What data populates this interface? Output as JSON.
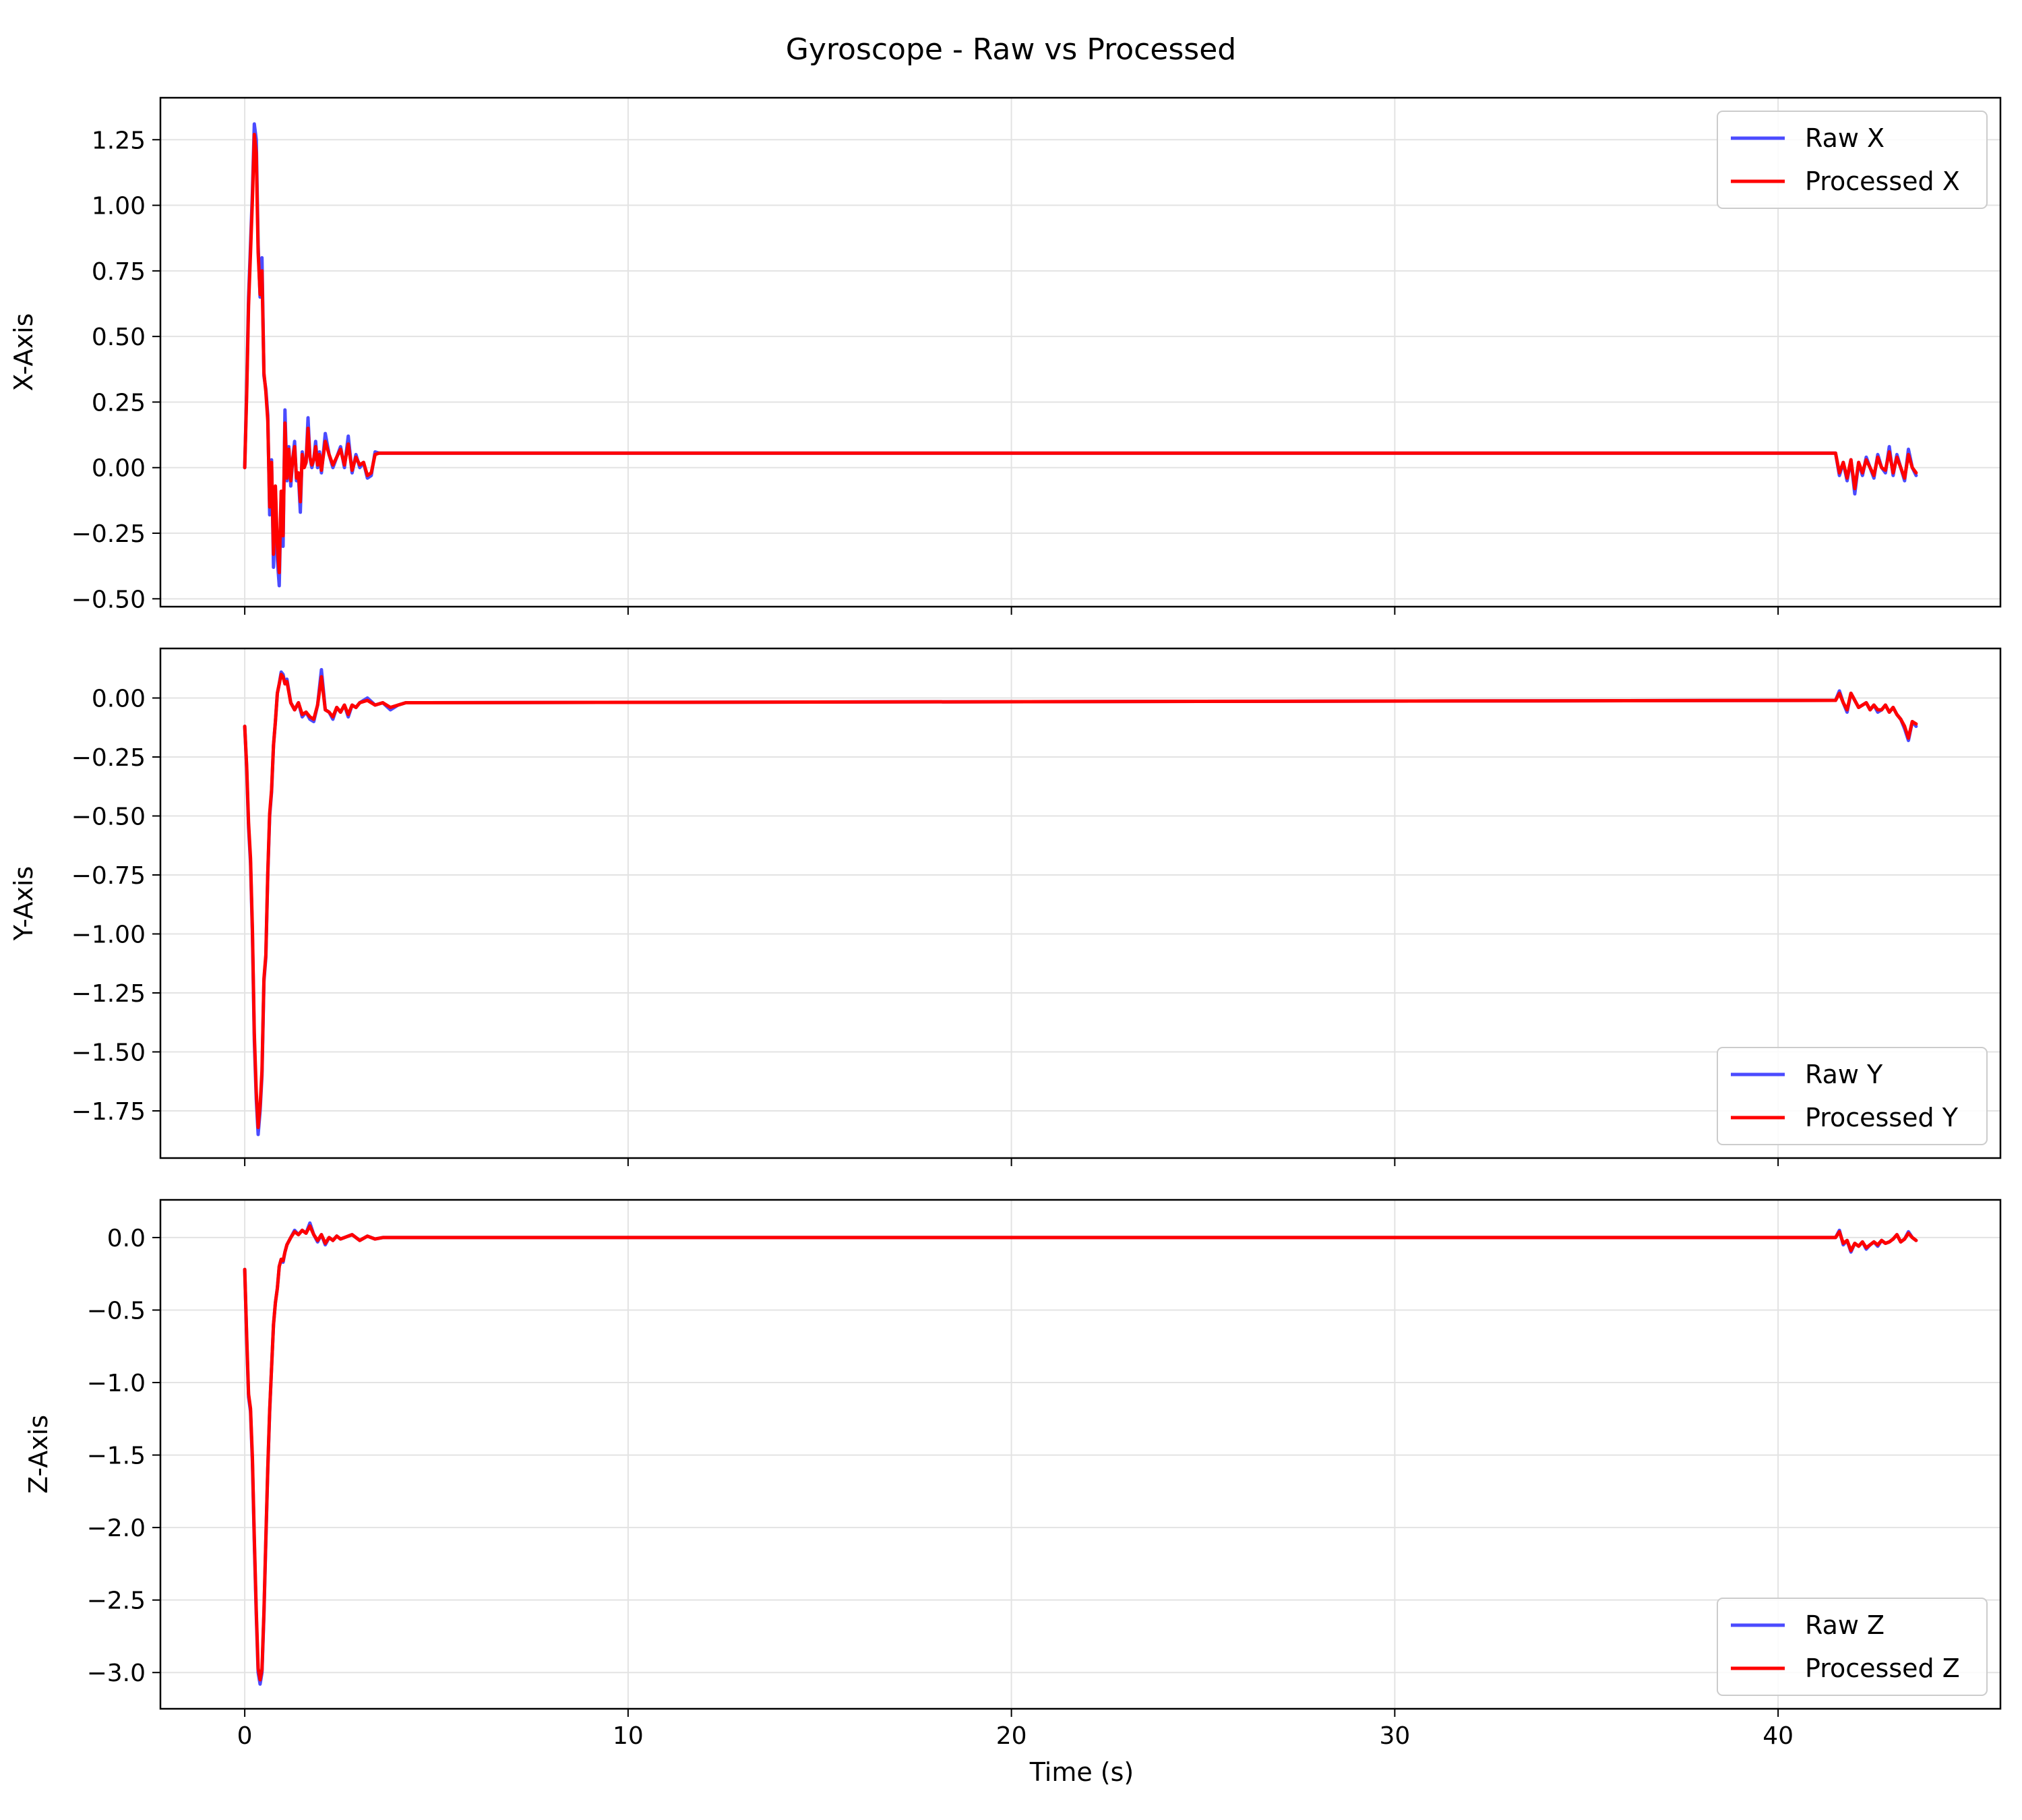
{
  "figure": {
    "title": "Gyroscope - Raw vs Processed",
    "xlabel": "Time (s)"
  },
  "colors": {
    "raw": "#4b4bff",
    "processed": "#ff0000",
    "grid": "#e3e3e3",
    "frame": "#000000"
  },
  "chart_data": [
    {
      "type": "line",
      "ylabel": "X-Axis",
      "xlim": [
        -2.2,
        45.8
      ],
      "ylim": [
        -0.53,
        1.41
      ],
      "xticks": [
        0,
        10,
        20,
        30,
        40
      ],
      "yticks": [
        -0.5,
        -0.25,
        0.0,
        0.25,
        0.5,
        0.75,
        1.0,
        1.25
      ],
      "ytick_labels": [
        "−0.50",
        "−0.25",
        "0.00",
        "0.25",
        "0.50",
        "0.75",
        "1.00",
        "1.25"
      ],
      "show_xtick_labels": false,
      "grid": true,
      "legend": {
        "position": "upper-right",
        "entries": [
          "Raw X",
          "Processed X"
        ]
      },
      "series": [
        {
          "name": "Raw X",
          "x": [
            0,
            0.05,
            0.1,
            0.15,
            0.2,
            0.25,
            0.3,
            0.35,
            0.4,
            0.45,
            0.5,
            0.55,
            0.6,
            0.65,
            0.7,
            0.75,
            0.8,
            0.85,
            0.9,
            0.95,
            1.0,
            1.05,
            1.1,
            1.15,
            1.2,
            1.25,
            1.3,
            1.35,
            1.4,
            1.45,
            1.5,
            1.55,
            1.6,
            1.65,
            1.7,
            1.75,
            1.8,
            1.85,
            1.9,
            1.95,
            2.0,
            2.1,
            2.2,
            2.3,
            2.4,
            2.5,
            2.6,
            2.7,
            2.8,
            2.9,
            3.0,
            3.1,
            3.2,
            3.3,
            3.4,
            3.5,
            3.6,
            3.7,
            3.8,
            3.9,
            4.0,
            4.1,
            4.2,
            41.5,
            41.6,
            41.7,
            41.8,
            41.9,
            42.0,
            42.1,
            42.2,
            42.3,
            42.4,
            42.5,
            42.6,
            42.7,
            42.8,
            42.9,
            43.0,
            43.1,
            43.2,
            43.3,
            43.4,
            43.5,
            43.6
          ],
          "y": [
            0.0,
            0.3,
            0.65,
            0.85,
            1.05,
            1.31,
            1.25,
            0.85,
            0.65,
            0.8,
            0.35,
            0.3,
            0.2,
            -0.18,
            0.03,
            -0.38,
            -0.08,
            -0.35,
            -0.45,
            -0.1,
            -0.3,
            0.22,
            -0.05,
            0.08,
            -0.07,
            0.03,
            0.1,
            -0.05,
            -0.03,
            -0.17,
            0.06,
            0.0,
            0.02,
            0.19,
            0.04,
            0.0,
            0.03,
            0.1,
            0.0,
            0.06,
            -0.02,
            0.13,
            0.05,
            0.0,
            0.04,
            0.08,
            0.0,
            0.12,
            -0.02,
            0.05,
            0.0,
            0.02,
            -0.04,
            -0.03,
            0.06,
            0.055,
            0.055,
            0.055,
            0.055,
            0.055,
            0.055,
            0.055,
            0.055,
            0.055,
            -0.03,
            0.02,
            -0.05,
            0.03,
            -0.1,
            0.02,
            -0.03,
            0.04,
            0.0,
            -0.04,
            0.05,
            0.0,
            -0.02,
            0.08,
            -0.03,
            0.05,
            0.0,
            -0.05,
            0.07,
            0.0,
            -0.03
          ]
        },
        {
          "name": "Processed X",
          "x": [
            0,
            0.05,
            0.1,
            0.15,
            0.2,
            0.25,
            0.3,
            0.35,
            0.4,
            0.45,
            0.5,
            0.55,
            0.6,
            0.65,
            0.7,
            0.75,
            0.8,
            0.85,
            0.9,
            0.95,
            1.0,
            1.05,
            1.1,
            1.15,
            1.2,
            1.25,
            1.3,
            1.35,
            1.4,
            1.45,
            1.5,
            1.55,
            1.6,
            1.65,
            1.7,
            1.75,
            1.8,
            1.85,
            1.9,
            1.95,
            2.0,
            2.1,
            2.2,
            2.3,
            2.4,
            2.5,
            2.6,
            2.7,
            2.8,
            2.9,
            3.0,
            3.1,
            3.2,
            3.3,
            3.4,
            3.5,
            3.6,
            3.7,
            3.8,
            3.9,
            4.0,
            4.1,
            4.2,
            41.5,
            41.6,
            41.7,
            41.8,
            41.9,
            42.0,
            42.1,
            42.2,
            42.3,
            42.4,
            42.5,
            42.6,
            42.7,
            42.8,
            42.9,
            43.0,
            43.1,
            43.2,
            43.3,
            43.4,
            43.5,
            43.6
          ],
          "y": [
            0.0,
            0.28,
            0.62,
            0.82,
            1.02,
            1.27,
            1.2,
            0.82,
            0.66,
            0.75,
            0.36,
            0.29,
            0.18,
            -0.15,
            0.02,
            -0.33,
            -0.07,
            -0.3,
            -0.4,
            -0.09,
            -0.26,
            0.17,
            -0.04,
            0.07,
            -0.05,
            0.03,
            0.08,
            -0.04,
            -0.02,
            -0.13,
            0.05,
            0.0,
            0.02,
            0.15,
            0.04,
            0.01,
            0.03,
            0.08,
            0.01,
            0.05,
            -0.01,
            0.1,
            0.05,
            0.01,
            0.04,
            0.07,
            0.01,
            0.09,
            -0.01,
            0.04,
            0.01,
            0.02,
            -0.03,
            -0.02,
            0.05,
            0.055,
            0.055,
            0.055,
            0.055,
            0.055,
            0.055,
            0.055,
            0.055,
            0.055,
            -0.02,
            0.02,
            -0.04,
            0.03,
            -0.08,
            0.02,
            -0.02,
            0.03,
            0.0,
            -0.03,
            0.04,
            0.0,
            -0.01,
            0.06,
            -0.02,
            0.04,
            0.0,
            -0.04,
            0.05,
            0.0,
            -0.02
          ]
        }
      ]
    },
    {
      "type": "line",
      "ylabel": "Y-Axis",
      "xlim": [
        -2.2,
        45.8
      ],
      "ylim": [
        -1.95,
        0.21
      ],
      "xticks": [
        0,
        10,
        20,
        30,
        40
      ],
      "yticks": [
        -1.75,
        -1.5,
        -1.25,
        -1.0,
        -0.75,
        -0.5,
        -0.25,
        0.0
      ],
      "ytick_labels": [
        "−1.75",
        "−1.50",
        "−1.25",
        "−1.00",
        "−0.75",
        "−0.50",
        "−0.25",
        "0.00"
      ],
      "show_xtick_labels": false,
      "grid": true,
      "legend": {
        "position": "lower-right",
        "entries": [
          "Raw Y",
          "Processed Y"
        ]
      },
      "series": [
        {
          "name": "Raw Y",
          "x": [
            0,
            0.05,
            0.1,
            0.15,
            0.2,
            0.25,
            0.3,
            0.35,
            0.4,
            0.45,
            0.5,
            0.55,
            0.6,
            0.65,
            0.7,
            0.75,
            0.8,
            0.85,
            0.9,
            0.95,
            1.0,
            1.05,
            1.1,
            1.2,
            1.3,
            1.4,
            1.5,
            1.6,
            1.7,
            1.8,
            1.9,
            2.0,
            2.1,
            2.2,
            2.3,
            2.4,
            2.5,
            2.6,
            2.7,
            2.8,
            2.9,
            3.0,
            3.2,
            3.4,
            3.6,
            3.8,
            4.0,
            4.2,
            41.5,
            41.6,
            41.7,
            41.8,
            41.9,
            42.0,
            42.1,
            42.2,
            42.3,
            42.4,
            42.5,
            42.6,
            42.7,
            42.8,
            42.9,
            43.0,
            43.1,
            43.2,
            43.3,
            43.4,
            43.5,
            43.6
          ],
          "y": [
            -0.12,
            -0.3,
            -0.55,
            -0.7,
            -1.0,
            -1.45,
            -1.7,
            -1.85,
            -1.75,
            -1.6,
            -1.2,
            -1.1,
            -0.75,
            -0.5,
            -0.4,
            -0.2,
            -0.1,
            0.02,
            0.06,
            0.11,
            0.1,
            0.06,
            0.08,
            -0.02,
            -0.05,
            -0.02,
            -0.08,
            -0.06,
            -0.09,
            -0.1,
            -0.03,
            0.12,
            -0.05,
            -0.06,
            -0.09,
            -0.04,
            -0.06,
            -0.03,
            -0.08,
            -0.03,
            -0.04,
            -0.02,
            0.0,
            -0.03,
            -0.02,
            -0.05,
            -0.03,
            -0.02,
            -0.01,
            0.03,
            -0.02,
            -0.06,
            0.02,
            -0.01,
            -0.04,
            -0.03,
            -0.02,
            -0.05,
            -0.03,
            -0.06,
            -0.05,
            -0.03,
            -0.06,
            -0.04,
            -0.07,
            -0.09,
            -0.13,
            -0.18,
            -0.1,
            -0.12
          ]
        },
        {
          "name": "Processed Y",
          "x": [
            0,
            0.05,
            0.1,
            0.15,
            0.2,
            0.25,
            0.3,
            0.35,
            0.4,
            0.45,
            0.5,
            0.55,
            0.6,
            0.65,
            0.7,
            0.75,
            0.8,
            0.85,
            0.9,
            0.95,
            1.0,
            1.05,
            1.1,
            1.2,
            1.3,
            1.4,
            1.5,
            1.6,
            1.7,
            1.8,
            1.9,
            2.0,
            2.1,
            2.2,
            2.3,
            2.4,
            2.5,
            2.6,
            2.7,
            2.8,
            2.9,
            3.0,
            3.2,
            3.4,
            3.6,
            3.8,
            4.0,
            4.2,
            41.5,
            41.6,
            41.7,
            41.8,
            41.9,
            42.0,
            42.1,
            42.2,
            42.3,
            42.4,
            42.5,
            42.6,
            42.7,
            42.8,
            42.9,
            43.0,
            43.1,
            43.2,
            43.3,
            43.4,
            43.5,
            43.6
          ],
          "y": [
            -0.12,
            -0.29,
            -0.53,
            -0.68,
            -0.98,
            -1.42,
            -1.67,
            -1.82,
            -1.73,
            -1.58,
            -1.19,
            -1.09,
            -0.74,
            -0.49,
            -0.39,
            -0.2,
            -0.1,
            0.02,
            0.06,
            0.1,
            0.09,
            0.06,
            0.07,
            -0.02,
            -0.05,
            -0.02,
            -0.07,
            -0.06,
            -0.08,
            -0.09,
            -0.03,
            0.09,
            -0.05,
            -0.06,
            -0.08,
            -0.04,
            -0.06,
            -0.03,
            -0.07,
            -0.03,
            -0.04,
            -0.02,
            -0.01,
            -0.03,
            -0.02,
            -0.04,
            -0.03,
            -0.02,
            -0.01,
            0.02,
            -0.02,
            -0.05,
            0.02,
            -0.01,
            -0.04,
            -0.03,
            -0.02,
            -0.05,
            -0.03,
            -0.05,
            -0.05,
            -0.03,
            -0.06,
            -0.04,
            -0.07,
            -0.09,
            -0.12,
            -0.17,
            -0.1,
            -0.11
          ]
        }
      ]
    },
    {
      "type": "line",
      "ylabel": "Z-Axis",
      "xlim": [
        -2.2,
        45.8
      ],
      "ylim": [
        -3.25,
        0.26
      ],
      "xticks": [
        0,
        10,
        20,
        30,
        40
      ],
      "yticks": [
        -3.0,
        -2.5,
        -2.0,
        -1.5,
        -1.0,
        -0.5,
        0.0
      ],
      "ytick_labels": [
        "−3.0",
        "−2.5",
        "−2.0",
        "−1.5",
        "−1.0",
        "−0.5",
        "0.0"
      ],
      "show_xtick_labels": true,
      "grid": true,
      "legend": {
        "position": "lower-right",
        "entries": [
          "Raw Z",
          "Processed Z"
        ]
      },
      "series": [
        {
          "name": "Raw Z",
          "x": [
            0,
            0.05,
            0.1,
            0.15,
            0.2,
            0.25,
            0.3,
            0.35,
            0.4,
            0.45,
            0.5,
            0.55,
            0.6,
            0.65,
            0.7,
            0.75,
            0.8,
            0.85,
            0.9,
            0.95,
            1.0,
            1.05,
            1.1,
            1.2,
            1.3,
            1.4,
            1.5,
            1.6,
            1.7,
            1.8,
            1.9,
            2.0,
            2.1,
            2.2,
            2.3,
            2.4,
            2.5,
            2.6,
            2.8,
            3.0,
            3.2,
            3.4,
            3.6,
            3.8,
            4.0,
            4.2,
            41.5,
            41.6,
            41.7,
            41.8,
            41.9,
            42.0,
            42.1,
            42.2,
            42.3,
            42.4,
            42.5,
            42.6,
            42.7,
            42.8,
            42.9,
            43.0,
            43.1,
            43.2,
            43.3,
            43.4,
            43.5,
            43.6
          ],
          "y": [
            -0.22,
            -0.7,
            -1.1,
            -1.2,
            -1.55,
            -2.1,
            -2.6,
            -3.0,
            -3.08,
            -3.0,
            -2.6,
            -2.1,
            -1.6,
            -1.2,
            -0.9,
            -0.6,
            -0.45,
            -0.35,
            -0.2,
            -0.15,
            -0.17,
            -0.1,
            -0.05,
            0.0,
            0.05,
            0.02,
            0.05,
            0.03,
            0.1,
            0.02,
            -0.03,
            0.02,
            -0.05,
            0.0,
            -0.02,
            0.01,
            -0.01,
            0.0,
            0.02,
            -0.02,
            0.01,
            -0.01,
            0.0,
            0.0,
            0.0,
            0.0,
            0.0,
            0.05,
            -0.05,
            -0.02,
            -0.1,
            -0.04,
            -0.06,
            -0.03,
            -0.08,
            -0.05,
            -0.03,
            -0.06,
            -0.02,
            -0.04,
            -0.03,
            -0.01,
            0.02,
            -0.03,
            -0.01,
            0.04,
            0.0,
            -0.02
          ]
        },
        {
          "name": "Processed Z",
          "x": [
            0,
            0.05,
            0.1,
            0.15,
            0.2,
            0.25,
            0.3,
            0.35,
            0.4,
            0.45,
            0.5,
            0.55,
            0.6,
            0.65,
            0.7,
            0.75,
            0.8,
            0.85,
            0.9,
            0.95,
            1.0,
            1.05,
            1.1,
            1.2,
            1.3,
            1.4,
            1.5,
            1.6,
            1.7,
            1.8,
            1.9,
            2.0,
            2.1,
            2.2,
            2.3,
            2.4,
            2.5,
            2.6,
            2.8,
            3.0,
            3.2,
            3.4,
            3.6,
            3.8,
            4.0,
            4.2,
            41.5,
            41.6,
            41.7,
            41.8,
            41.9,
            42.0,
            42.1,
            42.2,
            42.3,
            42.4,
            42.5,
            42.6,
            42.7,
            42.8,
            42.9,
            43.0,
            43.1,
            43.2,
            43.3,
            43.4,
            43.5,
            43.6
          ],
          "y": [
            -0.22,
            -0.68,
            -1.08,
            -1.18,
            -1.52,
            -2.07,
            -2.57,
            -2.97,
            -3.05,
            -2.98,
            -2.58,
            -2.08,
            -1.59,
            -1.19,
            -0.9,
            -0.6,
            -0.45,
            -0.35,
            -0.2,
            -0.15,
            -0.16,
            -0.1,
            -0.05,
            0.0,
            0.04,
            0.02,
            0.05,
            0.03,
            0.08,
            0.02,
            -0.02,
            0.02,
            -0.04,
            0.0,
            -0.02,
            0.01,
            -0.01,
            0.0,
            0.02,
            -0.02,
            0.01,
            -0.01,
            0.0,
            0.0,
            0.0,
            0.0,
            0.0,
            0.04,
            -0.04,
            -0.02,
            -0.09,
            -0.04,
            -0.06,
            -0.03,
            -0.07,
            -0.05,
            -0.03,
            -0.05,
            -0.02,
            -0.04,
            -0.03,
            -0.01,
            0.02,
            -0.03,
            -0.01,
            0.03,
            0.0,
            -0.02
          ]
        }
      ]
    }
  ]
}
